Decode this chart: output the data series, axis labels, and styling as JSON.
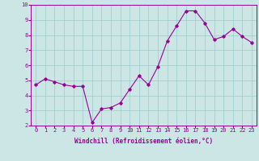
{
  "x": [
    0,
    1,
    2,
    3,
    4,
    5,
    6,
    7,
    8,
    9,
    10,
    11,
    12,
    13,
    14,
    15,
    16,
    17,
    18,
    19,
    20,
    21,
    22,
    23
  ],
  "y": [
    4.7,
    5.1,
    4.9,
    4.7,
    4.6,
    4.6,
    2.2,
    3.1,
    3.2,
    3.5,
    4.4,
    5.3,
    4.7,
    5.9,
    7.6,
    8.6,
    9.6,
    9.6,
    8.8,
    7.7,
    7.9,
    8.4,
    7.9,
    7.5
  ],
  "line_color": "#990099",
  "marker": "D",
  "marker_size": 1.8,
  "bg_color": "#cce5e5",
  "grid_color": "#99cccc",
  "xlabel": "Windchill (Refroidissement éolien,°C)",
  "tick_color": "#990099",
  "ylim": [
    2,
    10
  ],
  "xlim": [
    -0.5,
    23.5
  ],
  "yticks": [
    2,
    3,
    4,
    5,
    6,
    7,
    8,
    9,
    10
  ],
  "xticks": [
    0,
    1,
    2,
    3,
    4,
    5,
    6,
    7,
    8,
    9,
    10,
    11,
    12,
    13,
    14,
    15,
    16,
    17,
    18,
    19,
    20,
    21,
    22,
    23
  ],
  "tick_fontsize": 5,
  "xlabel_fontsize": 5.5
}
